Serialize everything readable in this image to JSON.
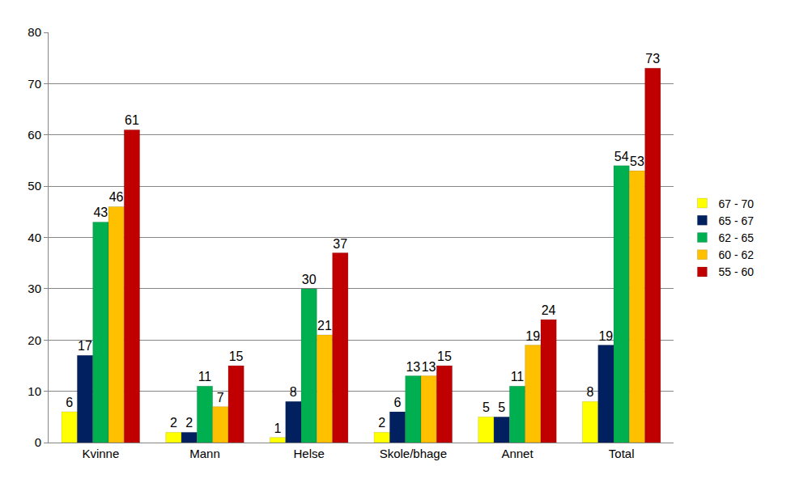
{
  "chart_data": {
    "type": "bar",
    "categories": [
      "Kvinne",
      "Mann",
      "Helse",
      "Skole/bhage",
      "Annet",
      "Total"
    ],
    "series": [
      {
        "name": "67 - 70",
        "color": "#ffff00",
        "values": [
          6,
          2,
          1,
          2,
          5,
          8
        ]
      },
      {
        "name": "65 - 67",
        "color": "#002060",
        "values": [
          17,
          2,
          8,
          6,
          5,
          19
        ]
      },
      {
        "name": "62 - 65",
        "color": "#00b050",
        "values": [
          43,
          11,
          30,
          13,
          11,
          54
        ]
      },
      {
        "name": "60 - 62",
        "color": "#ffc000",
        "values": [
          46,
          7,
          21,
          13,
          19,
          53
        ]
      },
      {
        "name": "55 - 60",
        "color": "#c00000",
        "values": [
          61,
          15,
          37,
          15,
          24,
          73
        ]
      }
    ],
    "ylim": [
      0,
      80
    ],
    "yticks": [
      0,
      10,
      20,
      30,
      40,
      50,
      60,
      70,
      80
    ],
    "grid": true,
    "legend": "right",
    "data_labels": true
  }
}
